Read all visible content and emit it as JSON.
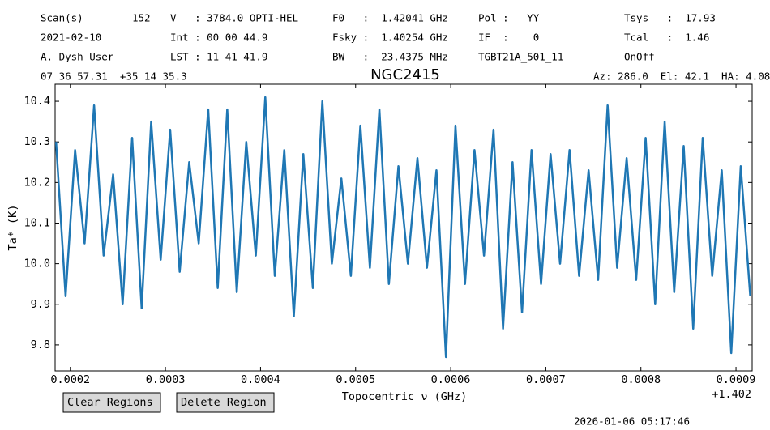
{
  "header": {
    "rows": [
      [
        "Scan(s)",
        "152",
        "V   : 3784.0 OPTI-HEL",
        "F0   :  1.42041 GHz",
        "Pol :   YY",
        "Tsys   :  17.93"
      ],
      [
        "2021-02-10",
        "Int : 00 00 44.9",
        "Fsky :  1.40254 GHz",
        "IF  :    0",
        "Tcal   :  1.46"
      ],
      [
        "A. Dysh User",
        "LST : 11 41 41.9",
        "BW   :  23.4375 MHz",
        "TGBT21A_501_11",
        "OnOff"
      ]
    ],
    "coords": "07 36 57.31  +35 14 35.3",
    "pointing": "Az: 286.0  El: 42.1  HA: 4.08"
  },
  "chart_data": {
    "type": "line",
    "title": "NGC2415",
    "x_label": "Topocentric ν (GHz)",
    "y_label": "Ta* (K)",
    "x_offset": "+1.402",
    "x": [
      0.000185,
      0.000195,
      0.000205,
      0.000215,
      0.000225,
      0.000235,
      0.000245,
      0.000255,
      0.000265,
      0.000275,
      0.000285,
      0.000295,
      0.000305,
      0.000315,
      0.000325,
      0.000335,
      0.000345,
      0.000355,
      0.000365,
      0.000375,
      0.000385,
      0.000395,
      0.000405,
      0.000415,
      0.000425,
      0.000435,
      0.000445,
      0.000455,
      0.000465,
      0.000475,
      0.000485,
      0.000495,
      0.000505,
      0.000515,
      0.000525,
      0.000535,
      0.000545,
      0.000555,
      0.000565,
      0.000575,
      0.000585,
      0.000595,
      0.000605,
      0.000615,
      0.000625,
      0.000635,
      0.000645,
      0.000655,
      0.000665,
      0.000675,
      0.000685,
      0.000695,
      0.000705,
      0.000715,
      0.000725,
      0.000735,
      0.000745,
      0.000755,
      0.000765,
      0.000775,
      0.000785,
      0.000795,
      0.000805,
      0.000815,
      0.000825,
      0.000835,
      0.000845,
      0.000855,
      0.000865,
      0.000875,
      0.000885,
      0.000895,
      0.000905,
      0.000915
    ],
    "series": [
      {
        "color": "#1f77b4",
        "values": [
          10.3,
          9.92,
          10.28,
          10.05,
          10.39,
          10.02,
          10.22,
          9.9,
          10.31,
          9.89,
          10.35,
          10.01,
          10.33,
          9.98,
          10.25,
          10.05,
          10.38,
          9.94,
          10.38,
          9.93,
          10.3,
          10.02,
          10.41,
          9.97,
          10.28,
          9.87,
          10.27,
          9.94,
          10.4,
          10.0,
          10.21,
          9.97,
          10.34,
          9.99,
          10.38,
          9.95,
          10.24,
          10.0,
          10.26,
          9.99,
          10.23,
          9.77,
          10.34,
          9.95,
          10.28,
          10.02,
          10.33,
          9.84,
          10.25,
          9.88,
          10.28,
          9.95,
          10.27,
          10.0,
          10.28,
          9.97,
          10.23,
          9.96,
          10.39,
          9.99,
          10.26,
          9.96,
          10.31,
          9.9,
          10.35,
          9.93,
          10.29,
          9.84,
          10.31,
          9.97,
          10.23,
          9.78,
          10.24,
          9.92
        ]
      }
    ],
    "xlim": [
      0.000184,
      0.000917
    ],
    "ylim": [
      9.736,
      10.442
    ],
    "xticks": [
      0.0002,
      0.0003,
      0.0004,
      0.0005,
      0.0006,
      0.0007,
      0.0008,
      0.0009
    ],
    "yticks": [
      9.8,
      9.9,
      {
        "value": 10,
        "label": "10.0"
      },
      10.1,
      10.2,
      10.3,
      10.4
    ]
  },
  "buttons": [
    "Clear Regions",
    "Delete Region"
  ],
  "timestamp": "2026-01-06 05:17:46"
}
